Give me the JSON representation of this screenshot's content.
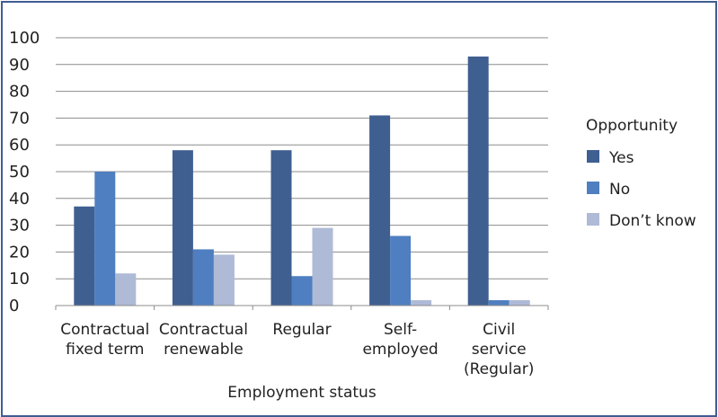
{
  "chart_data": {
    "type": "bar",
    "title": "",
    "xlabel": "Employment status",
    "ylabel": "",
    "ylim": [
      0,
      100
    ],
    "yticks": [
      0,
      10,
      20,
      30,
      40,
      50,
      60,
      70,
      80,
      90,
      100
    ],
    "grid": true,
    "legend_position": "right",
    "legend_title": "Opportunity",
    "categories": [
      [
        "Contractual",
        "fixed term"
      ],
      [
        "Contractual",
        "renewable"
      ],
      [
        "Regular"
      ],
      [
        "Self-",
        "employed"
      ],
      [
        "Civil",
        "service",
        "(Regular)"
      ]
    ],
    "series": [
      {
        "name": "Yes",
        "color": "#3f5f91",
        "values": [
          37,
          58,
          58,
          71,
          93
        ]
      },
      {
        "name": "No",
        "color": "#4f7fc0",
        "values": [
          50,
          21,
          11,
          26,
          2
        ]
      },
      {
        "name": "Don’t know",
        "color": "#aebad6",
        "values": [
          12,
          19,
          29,
          2,
          2
        ]
      }
    ]
  }
}
